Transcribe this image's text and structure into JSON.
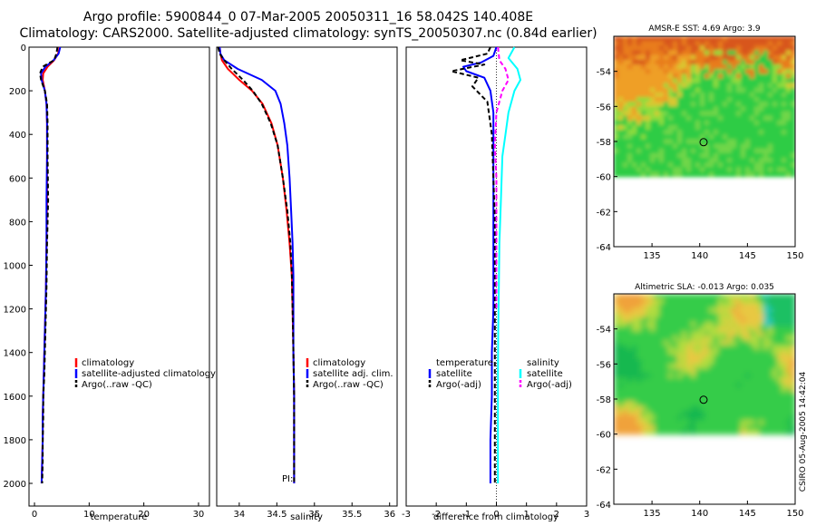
{
  "figure": {
    "title_line1": "Argo profile:  5900844_0 07-Mar-2005 20050311_16 58.042S 140.408E",
    "title_line2": "Climatology: CARS2000. Satellite-adjusted climatology: synTS_20050307.nc (0.84d earlier)",
    "stamp": "CSIRO 05-Aug-2005 14:42:04",
    "pi_label": "PI:"
  },
  "colors": {
    "climatology": "#ff0000",
    "satellite": "#0000ff",
    "argo": "#000000",
    "salinity_satellite": "#00ffff",
    "salinity_argo": "#ff00ff"
  },
  "chart_data": [
    {
      "id": "temperature",
      "type": "line",
      "xlabel": "temperature",
      "ylabel": "",
      "xlim": [
        -1,
        32
      ],
      "ylim": [
        2050,
        0
      ],
      "xticks": [
        0,
        10,
        20,
        30
      ],
      "yticks": [
        0,
        200,
        400,
        600,
        800,
        1000,
        1200,
        1400,
        1600,
        1800,
        2000
      ],
      "legend": [
        "climatology",
        "satellite-adjusted climatology",
        "Argo(..raw -QC)"
      ],
      "legend_position": "lower-right",
      "series": [
        {
          "name": "climatology",
          "color": "#ff0000",
          "x": [
            4.6,
            4.3,
            3.6,
            2.4,
            1.6,
            1.5,
            1.9,
            2.2,
            2.3,
            2.3,
            2.3,
            2.2,
            2.1,
            1.9,
            1.8,
            1.7,
            1.6,
            1.5,
            1.5,
            1.4,
            1.3
          ],
          "y": [
            0,
            30,
            60,
            90,
            120,
            150,
            200,
            260,
            350,
            500,
            700,
            900,
            1100,
            1300,
            1400,
            1500,
            1600,
            1700,
            1800,
            1900,
            2000
          ]
        },
        {
          "name": "satellite-adjusted climatology",
          "color": "#0000ff",
          "x": [
            4.7,
            4.4,
            3.5,
            2.0,
            1.2,
            1.3,
            1.9,
            2.2,
            2.3,
            2.3,
            2.2,
            2.2,
            2.1,
            1.9,
            1.8,
            1.7,
            1.6,
            1.5,
            1.5,
            1.4,
            1.3
          ],
          "y": [
            0,
            30,
            60,
            90,
            120,
            150,
            200,
            260,
            350,
            500,
            700,
            900,
            1100,
            1300,
            1400,
            1500,
            1600,
            1700,
            1800,
            1900,
            2000
          ]
        },
        {
          "name": "Argo(..raw -QC)",
          "color": "#000000",
          "dashed": true,
          "x": [
            4.2,
            4.0,
            3.6,
            1.5,
            1.0,
            1.2,
            1.9,
            2.3,
            2.4,
            2.4,
            2.5,
            2.3,
            2.2,
            2.0,
            1.9,
            1.8,
            1.6,
            1.6,
            1.5,
            1.5,
            1.4
          ],
          "y": [
            0,
            30,
            60,
            90,
            120,
            150,
            200,
            260,
            350,
            500,
            700,
            900,
            1100,
            1300,
            1400,
            1500,
            1600,
            1700,
            1800,
            1900,
            2000
          ]
        }
      ]
    },
    {
      "id": "salinity",
      "type": "line",
      "xlabel": "salinity",
      "ylabel": "",
      "xlim": [
        33.7,
        36.1
      ],
      "ylim": [
        2050,
        0
      ],
      "xticks": [
        34,
        34.5,
        35,
        35.5,
        36
      ],
      "xticklabels": [
        "34",
        "34.5",
        "35",
        "35.5",
        "36"
      ],
      "legend": [
        "climatology",
        "satellite adj. clim.",
        "Argo(..raw -QC)"
      ],
      "legend_position": "lower-right",
      "series": [
        {
          "name": "climatology",
          "color": "#ff0000",
          "x": [
            33.74,
            33.75,
            33.77,
            33.85,
            34.0,
            34.17,
            34.31,
            34.43,
            34.51,
            34.58,
            34.63,
            34.67,
            34.7,
            34.71,
            34.72,
            34.73,
            34.73,
            34.73,
            34.73
          ],
          "y": [
            0,
            30,
            60,
            100,
            150,
            200,
            260,
            350,
            450,
            600,
            750,
            900,
            1050,
            1200,
            1400,
            1600,
            1800,
            1900,
            2000
          ]
        },
        {
          "name": "satellite adj. clim.",
          "color": "#0000ff",
          "x": [
            33.74,
            33.75,
            33.8,
            33.98,
            34.3,
            34.48,
            34.55,
            34.6,
            34.64,
            34.67,
            34.69,
            34.71,
            34.72,
            34.72,
            34.72,
            34.73,
            34.73,
            34.73,
            34.73
          ],
          "y": [
            0,
            30,
            60,
            100,
            150,
            200,
            260,
            350,
            450,
            600,
            750,
            900,
            1050,
            1200,
            1400,
            1600,
            1800,
            1900,
            2000
          ]
        },
        {
          "name": "Argo(..raw -QC)",
          "color": "#000000",
          "dashed": true,
          "x": [
            33.72,
            33.74,
            33.8,
            33.9,
            34.05,
            34.18,
            34.3,
            34.42,
            34.51,
            34.58,
            34.64,
            34.68,
            34.7,
            34.71,
            34.72,
            34.73,
            34.73,
            34.73,
            34.73
          ],
          "y": [
            0,
            30,
            60,
            100,
            150,
            200,
            260,
            350,
            450,
            600,
            750,
            900,
            1050,
            1200,
            1400,
            1600,
            1800,
            1900,
            2000
          ]
        }
      ]
    },
    {
      "id": "difference",
      "type": "line",
      "xlabel": "difference from climatology",
      "ylabel": "",
      "xlim": [
        -3,
        3
      ],
      "ylim": [
        2050,
        0
      ],
      "xticks": [
        -3,
        -2,
        -1,
        0,
        1,
        2,
        3
      ],
      "legend_left_title": "temperature",
      "legend_right_title": "salinity",
      "legend_left": [
        "satellite",
        "Argo(-adj)"
      ],
      "legend_right": [
        "satellite",
        "Argo(-adj)"
      ],
      "legend_position": "lower-right",
      "series": [
        {
          "name": "temperature satellite",
          "color": "#0000ff",
          "x": [
            0.0,
            -0.1,
            -0.5,
            -1.1,
            -1.0,
            -0.4,
            -0.2,
            -0.1,
            -0.1,
            -0.1,
            -0.1,
            -0.1,
            -0.1,
            -0.15,
            -0.15,
            -0.2,
            -0.2
          ],
          "y": [
            0,
            40,
            70,
            90,
            110,
            140,
            200,
            300,
            450,
            600,
            800,
            1000,
            1200,
            1400,
            1600,
            1800,
            2000
          ]
        },
        {
          "name": "temperature Argo(-adj)",
          "color": "#000000",
          "dashed": true,
          "x": [
            -0.2,
            -0.3,
            -1.2,
            -0.4,
            -1.5,
            -0.6,
            -0.8,
            -0.3,
            -0.15,
            -0.1,
            -0.05,
            -0.05,
            -0.05,
            -0.05,
            -0.05,
            -0.05,
            -0.05
          ],
          "y": [
            0,
            30,
            60,
            80,
            110,
            140,
            180,
            250,
            400,
            600,
            800,
            1000,
            1200,
            1400,
            1600,
            1800,
            2000
          ]
        },
        {
          "name": "salinity satellite",
          "color": "#00ffff",
          "x": [
            0.6,
            0.4,
            0.7,
            0.8,
            0.6,
            0.4,
            0.3,
            0.2,
            0.15,
            0.1,
            0.08,
            0.06,
            0.05,
            0.05,
            0.05,
            0.05
          ],
          "y": [
            0,
            50,
            100,
            150,
            200,
            300,
            400,
            500,
            700,
            900,
            1100,
            1300,
            1500,
            1700,
            1900,
            2000
          ]
        },
        {
          "name": "salinity Argo(-adj)",
          "color": "#ff00ff",
          "dashed": true,
          "x": [
            0.05,
            0.1,
            0.3,
            0.4,
            0.2,
            0.0,
            -0.05,
            0.0,
            0.0,
            0.0,
            0.0
          ],
          "y": [
            0,
            60,
            100,
            150,
            200,
            300,
            450,
            600,
            800,
            1000,
            1200
          ]
        }
      ]
    },
    {
      "id": "sst-map",
      "type": "heatmap",
      "title": "AMSR-E SST: 4.69 Argo: 3.9",
      "xlim": [
        131,
        150
      ],
      "ylim": [
        -64,
        -52
      ],
      "xticks": [
        135,
        140,
        145,
        150
      ],
      "yticks": [
        -54,
        -56,
        -58,
        -60,
        -62,
        -64
      ],
      "data_extent_lat": [
        -60,
        -52
      ],
      "argo_position": {
        "lon": 140.408,
        "lat": -58.042
      }
    },
    {
      "id": "sla-map",
      "type": "heatmap",
      "title": "Altimetric SLA: -0.013 Argo: 0.035",
      "xlim": [
        131,
        150
      ],
      "ylim": [
        -64,
        -52
      ],
      "xticks": [
        135,
        140,
        145,
        150
      ],
      "yticks": [
        -54,
        -56,
        -58,
        -60,
        -62,
        -64
      ],
      "data_extent_lat": [
        -60,
        -52
      ],
      "argo_position": {
        "lon": 140.408,
        "lat": -58.042
      }
    }
  ]
}
